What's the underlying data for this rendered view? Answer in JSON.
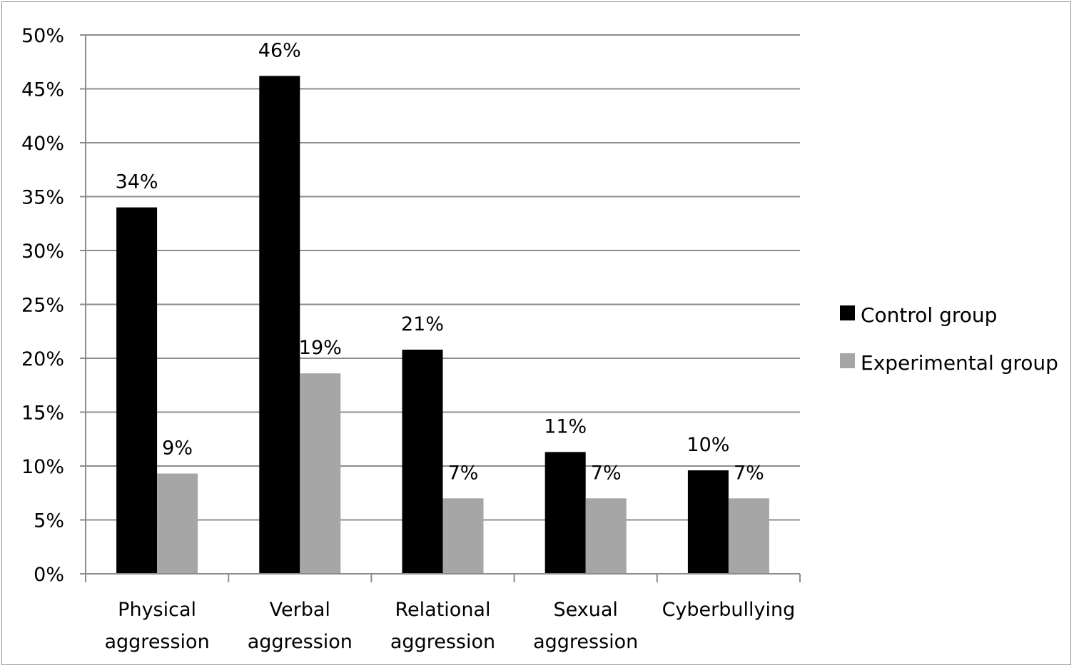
{
  "chart_data": {
    "type": "bar",
    "title": "",
    "xlabel": "",
    "ylabel": "",
    "ylim": [
      0,
      0.5
    ],
    "ytick_step": 0.05,
    "grid": true,
    "legend_position": "right",
    "categories": [
      [
        "Physical",
        "aggression"
      ],
      [
        "Verbal",
        "aggression"
      ],
      [
        "Relational",
        "aggression"
      ],
      [
        "Sexual",
        "aggression"
      ],
      [
        "Cyberbullying"
      ]
    ],
    "series": [
      {
        "name": "Control group",
        "color": "#000000",
        "values": [
          0.34,
          0.462,
          0.208,
          0.113,
          0.096
        ],
        "labels": [
          "34%",
          "46%",
          "21%",
          "11%",
          "10%"
        ]
      },
      {
        "name": "Experimental group",
        "color": "#a6a6a6",
        "values": [
          0.093,
          0.186,
          0.07,
          0.07,
          0.07
        ],
        "labels": [
          "9%",
          "19%",
          "7%",
          "7%",
          "7%"
        ]
      }
    ],
    "y_tick_labels": [
      "0%",
      "5%",
      "10%",
      "15%",
      "20%",
      "25%",
      "30%",
      "35%",
      "40%",
      "45%",
      "50%"
    ]
  }
}
